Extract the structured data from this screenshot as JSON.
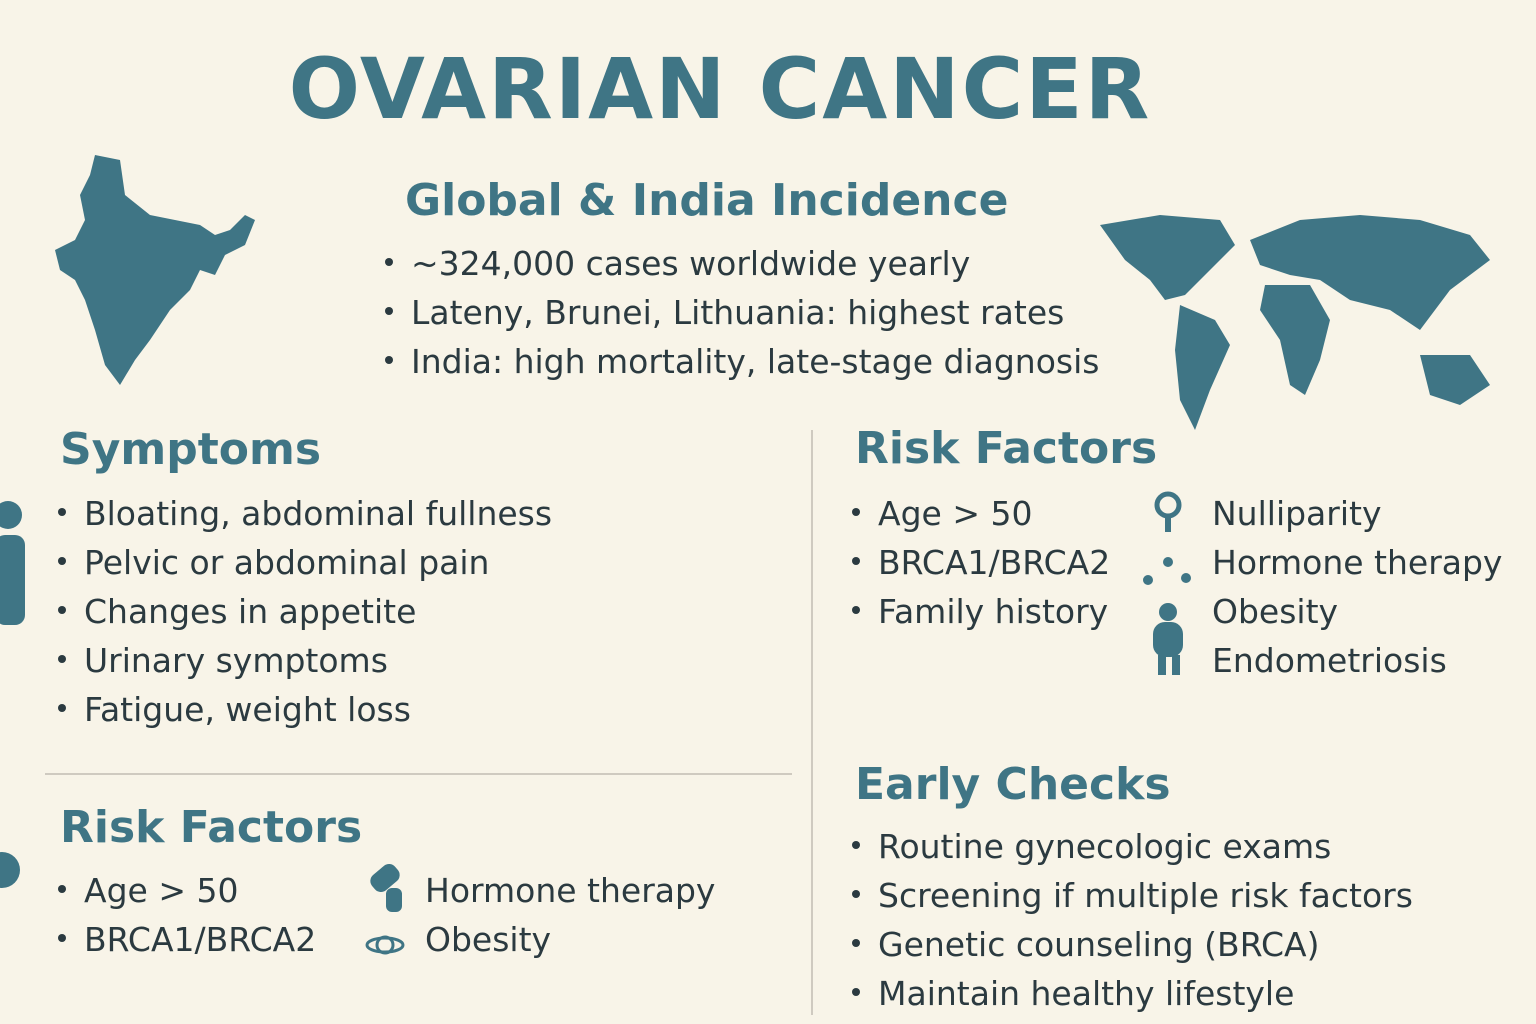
{
  "title": "OVARIAN CANCER",
  "incidence": {
    "heading": "Global & India Incidence",
    "items": [
      "~324,000 cases worldwide yearly",
      "Lateny, Brunei, Lithuania: highest rates",
      "India: high mortality, late-stage diagnosis"
    ]
  },
  "symptoms": {
    "heading": "Symptoms",
    "items": [
      "Bloating, abdominal fullness",
      "Pelvic or abdominal pain",
      "Changes in appetite",
      "Urinary symptoms",
      "Fatigue, weight loss"
    ]
  },
  "risk_factors_right": {
    "heading": "Risk Factors",
    "items": [
      "Age > 50",
      "BRCA1/BRCA2",
      "Family history"
    ],
    "icon_items": [
      "Nulliparity",
      "Hormone therapy",
      "Obesity",
      "Endometriosis"
    ]
  },
  "early_checks": {
    "heading": "Early Checks",
    "items": [
      "Routine gynecologic exams",
      "Screening if multiple risk factors",
      "Genetic counseling (BRCA)",
      "Maintain healthy lifestyle"
    ]
  },
  "risk_factors_left": {
    "heading": "Risk Factors",
    "items": [
      "Age > 50",
      "BRCA1/BRCA2"
    ],
    "icon_items": [
      "Hormone therapy",
      "Obesity"
    ]
  }
}
